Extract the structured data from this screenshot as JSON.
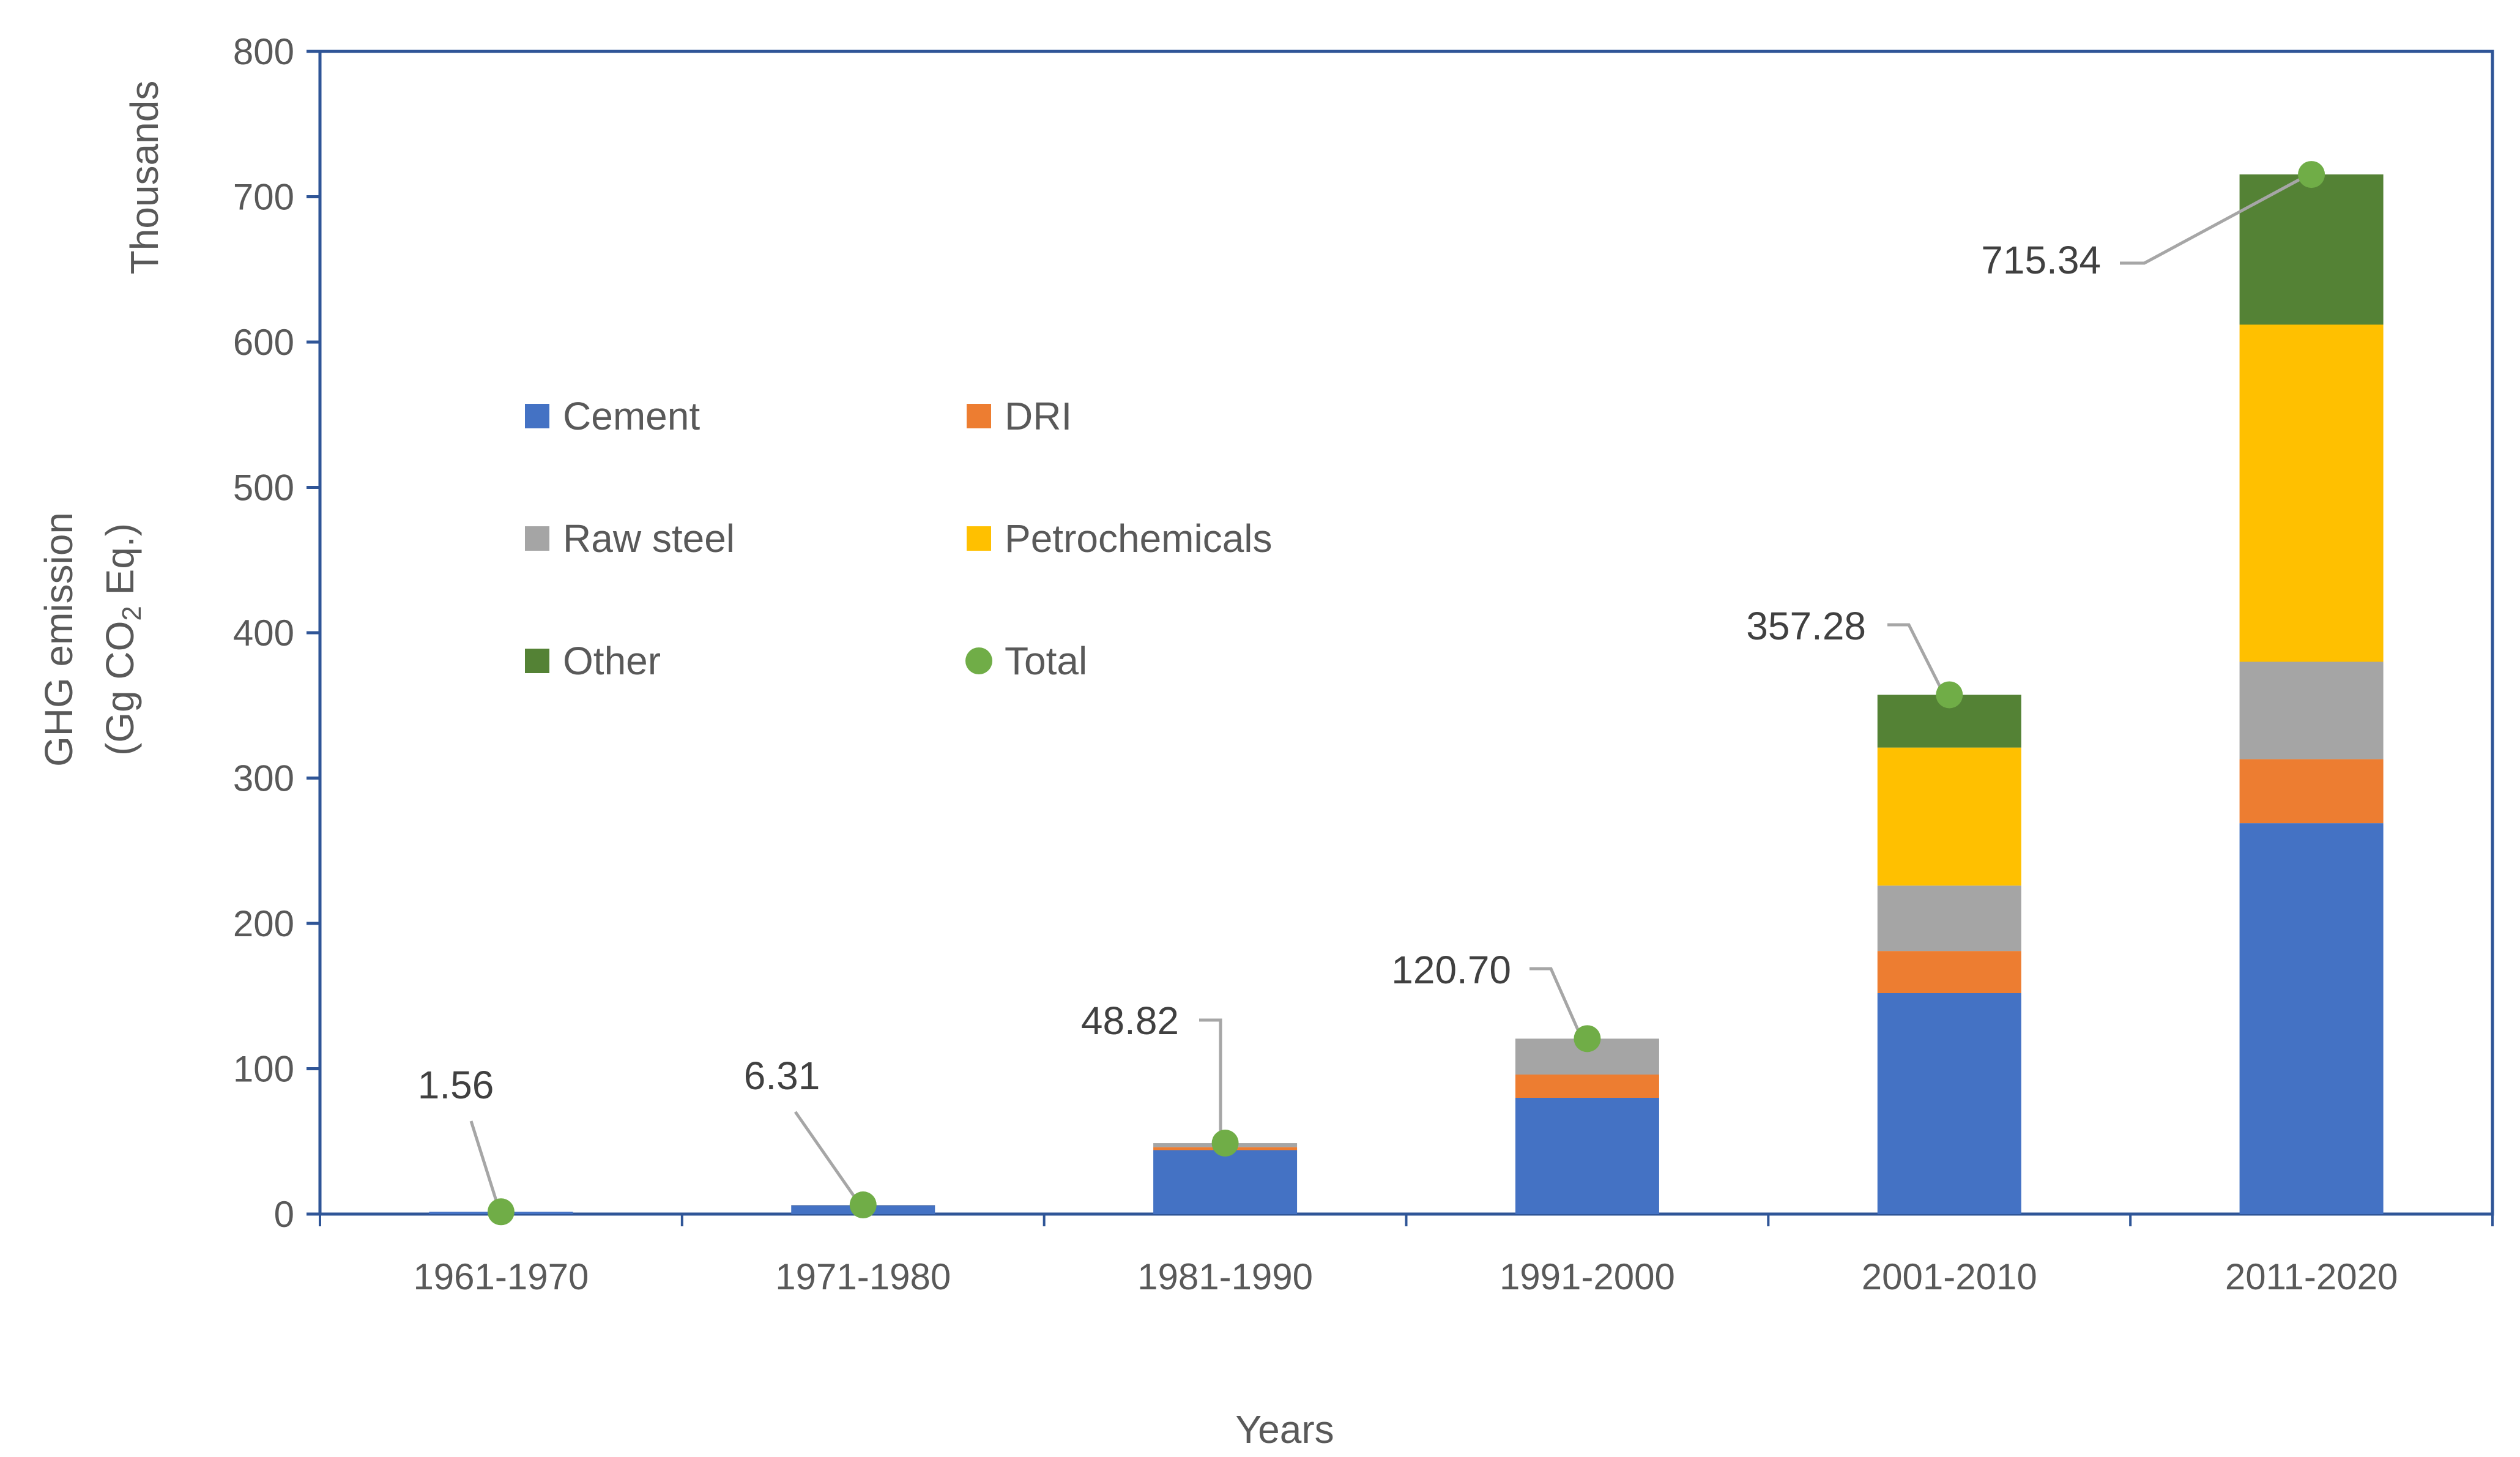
{
  "chart_data": {
    "type": "bar",
    "stacked": true,
    "categories": [
      "1961-1970",
      "1971-1980",
      "1981-1990",
      "1991-2000",
      "2001-2010",
      "2011-2020"
    ],
    "series": [
      {
        "name": "Cement",
        "color": "#4472C4",
        "values": [
          1.56,
          6.0,
          44,
          80,
          152,
          269
        ]
      },
      {
        "name": "DRI",
        "color": "#ED7D31",
        "values": [
          0,
          0,
          2,
          16,
          29,
          44
        ]
      },
      {
        "name": "Raw steel",
        "color": "#A5A5A5",
        "values": [
          0,
          0.31,
          2.82,
          24.7,
          45,
          67
        ]
      },
      {
        "name": "Petrochemicals",
        "color": "#FFC000",
        "values": [
          0,
          0,
          0,
          0,
          95,
          232
        ]
      },
      {
        "name": "Other",
        "color": "#548235",
        "values": [
          0,
          0,
          0,
          0,
          36.28,
          103.34
        ]
      }
    ],
    "total": {
      "name": "Total",
      "color": "#70AD47",
      "values": [
        1.56,
        6.31,
        48.82,
        120.7,
        357.28,
        715.34
      ],
      "labels": [
        "1.56",
        "6.31",
        "48.82",
        "120.70",
        "357.28",
        "715.34"
      ]
    },
    "xlabel": "Years",
    "ylabel": "GHG emission",
    "ylabel_line2_prefix": "(Gg CO",
    "ylabel_subscript": "2",
    "ylabel_line2_suffix": " Eq.)",
    "units_label": "Thousands",
    "ylim": [
      0,
      800
    ],
    "yticks": [
      0,
      100,
      200,
      300,
      400,
      500,
      600,
      700,
      800
    ],
    "legend_position": "upper-left inside plot",
    "grid": false
  }
}
